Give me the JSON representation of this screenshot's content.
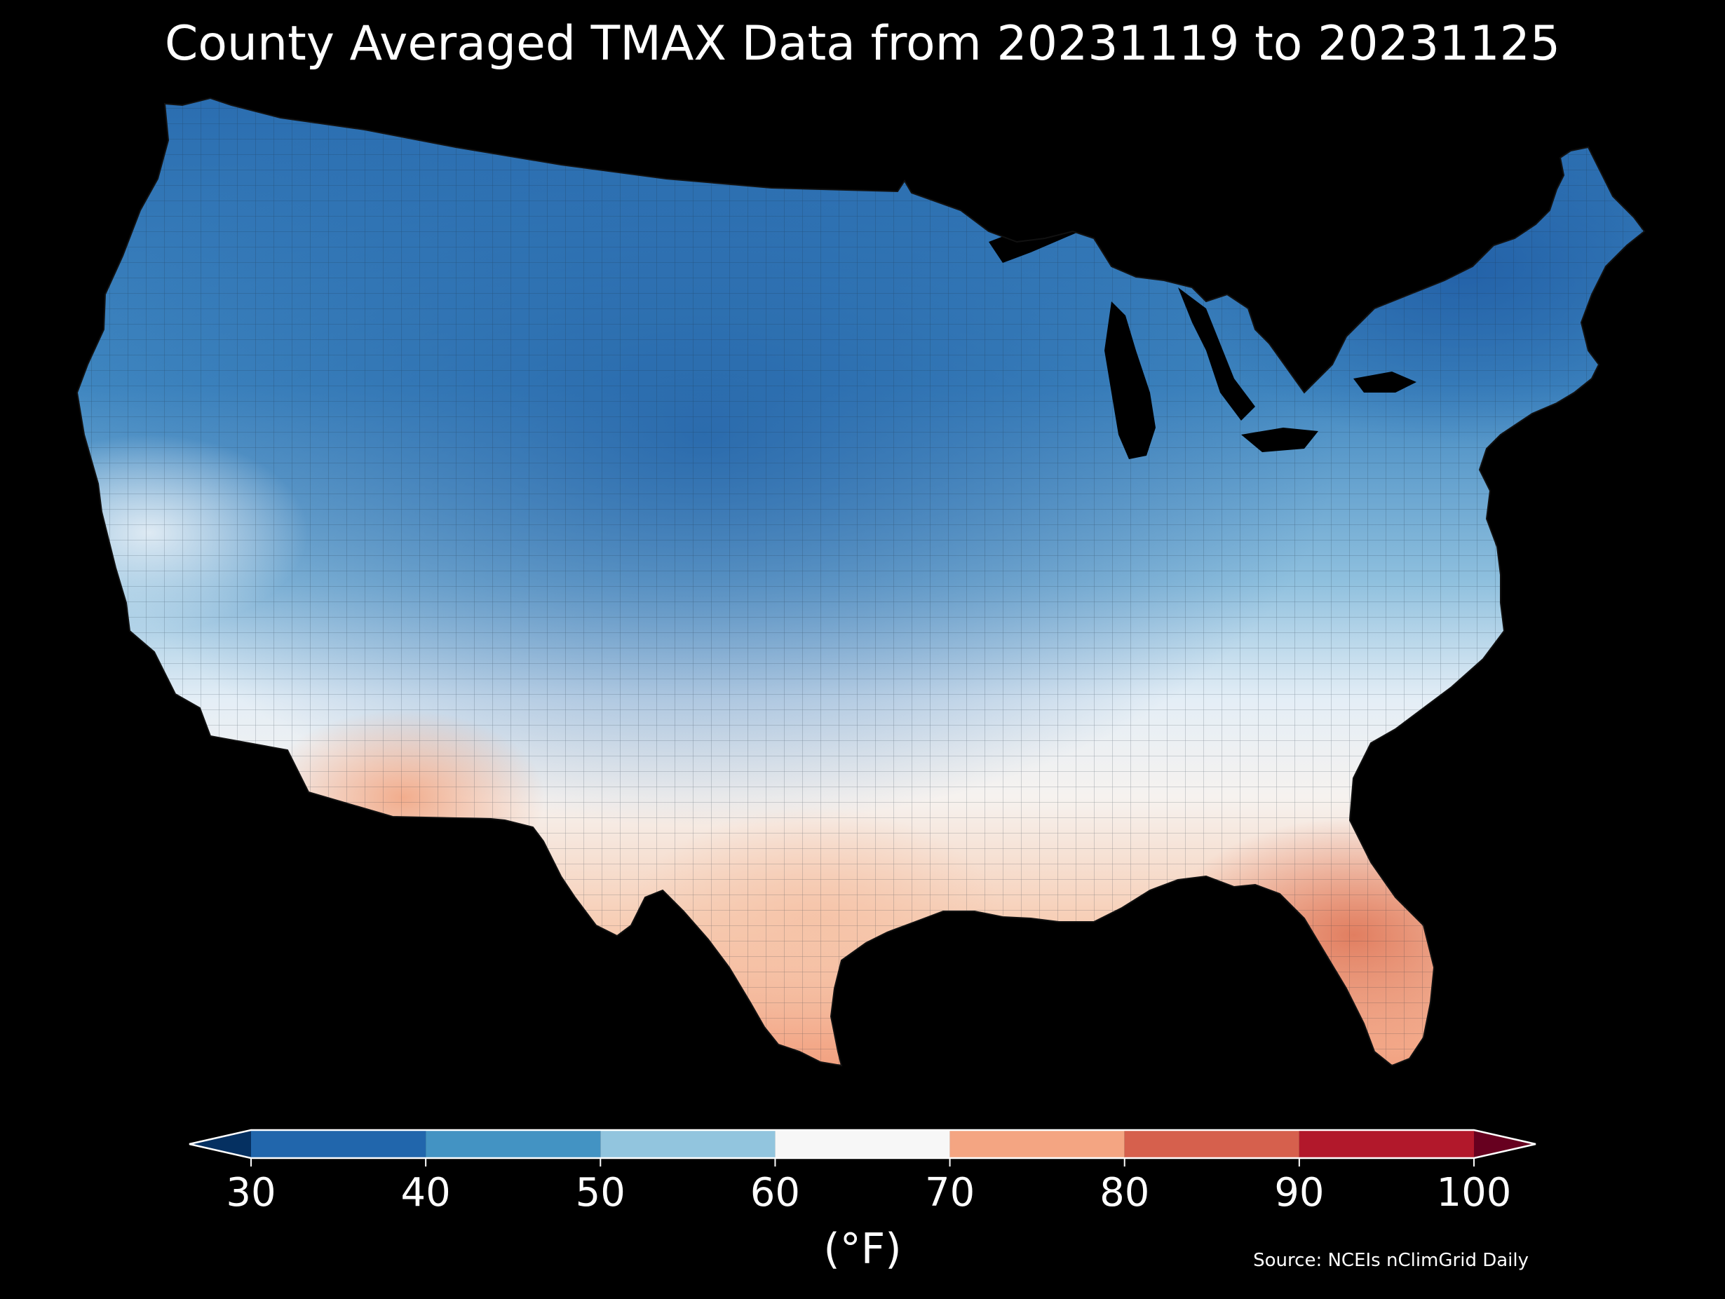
{
  "title": "County Averaged TMAX Data from 20231119 to 20231125",
  "colorbar": {
    "unit": "(°F)",
    "ticks": [
      "30",
      "40",
      "50",
      "60",
      "70",
      "80",
      "90",
      "100"
    ],
    "bins": [
      {
        "range": [
          30,
          40
        ],
        "color": "#2166ac"
      },
      {
        "range": [
          40,
          50
        ],
        "color": "#4393c3"
      },
      {
        "range": [
          50,
          60
        ],
        "color": "#92c5de"
      },
      {
        "range": [
          60,
          70
        ],
        "color": "#f7f7f7"
      },
      {
        "range": [
          70,
          80
        ],
        "color": "#f4a582"
      },
      {
        "range": [
          80,
          90
        ],
        "color": "#d6604d"
      },
      {
        "range": [
          90,
          100
        ],
        "color": "#b2182b"
      }
    ],
    "under_color": "#053061",
    "over_color": "#67001f"
  },
  "map": {
    "region": "contiguous United States",
    "unit_of_aggregation": "county",
    "background": "#000000"
  },
  "source": "Source: NCEIs nClimGrid Daily"
}
